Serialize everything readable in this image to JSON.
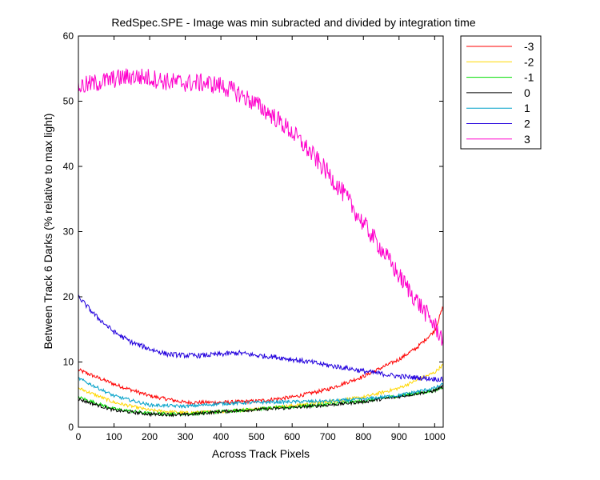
{
  "chart_data": {
    "type": "line",
    "title": "RedSpec.SPE - Image was min subracted and divided by integration time",
    "xlabel": "Across Track Pixels",
    "ylabel": "Between Track 6 Darks (% relative to max light)",
    "xlim": [
      0,
      1024
    ],
    "ylim": [
      0,
      60
    ],
    "xticks": [
      0,
      100,
      200,
      300,
      400,
      500,
      600,
      700,
      800,
      900,
      1000
    ],
    "yticks": [
      0,
      10,
      20,
      30,
      40,
      50,
      60
    ],
    "grid": false,
    "legend_position": "outside-top-right",
    "series": [
      {
        "name": "-3",
        "color": "#ff0000",
        "x": [
          0,
          100,
          200,
          300,
          400,
          500,
          600,
          700,
          800,
          900,
          950,
          1000,
          1024
        ],
        "y": [
          8.8,
          6.6,
          4.8,
          3.8,
          3.8,
          4.0,
          4.6,
          5.8,
          7.8,
          10.4,
          12.2,
          14.8,
          18.5
        ]
      },
      {
        "name": "-2",
        "color": "#ffd700",
        "x": [
          0,
          100,
          200,
          300,
          400,
          500,
          600,
          700,
          800,
          900,
          1000,
          1024
        ],
        "y": [
          6.0,
          3.8,
          2.6,
          2.2,
          2.4,
          2.8,
          3.3,
          3.9,
          4.6,
          6.0,
          8.4,
          9.6
        ]
      },
      {
        "name": "-1",
        "color": "#00dd00",
        "x": [
          0,
          100,
          200,
          300,
          400,
          500,
          600,
          700,
          800,
          900,
          1000,
          1024
        ],
        "y": [
          4.6,
          2.8,
          2.1,
          2.0,
          2.4,
          2.8,
          3.1,
          3.5,
          4.0,
          4.8,
          5.6,
          6.2
        ]
      },
      {
        "name": "0",
        "color": "#000000",
        "x": [
          0,
          100,
          200,
          300,
          400,
          500,
          600,
          700,
          800,
          900,
          1000,
          1024
        ],
        "y": [
          4.3,
          2.6,
          2.0,
          1.9,
          2.4,
          2.7,
          3.0,
          3.4,
          3.9,
          4.7,
          5.6,
          6.3
        ]
      },
      {
        "name": "1",
        "color": "#00a0c8",
        "x": [
          0,
          100,
          200,
          300,
          400,
          500,
          600,
          700,
          800,
          900,
          1000,
          1024
        ],
        "y": [
          7.5,
          4.8,
          3.4,
          3.2,
          3.6,
          3.8,
          3.9,
          4.0,
          4.3,
          4.9,
          6.0,
          6.6
        ]
      },
      {
        "name": "2",
        "color": "#2200dd",
        "x": [
          0,
          50,
          100,
          150,
          200,
          250,
          300,
          350,
          400,
          450,
          500,
          550,
          600,
          650,
          700,
          750,
          800,
          850,
          900,
          950,
          1000,
          1024
        ],
        "y": [
          20.0,
          17.0,
          14.6,
          13.0,
          12.0,
          11.2,
          11.0,
          11.0,
          11.2,
          11.4,
          11.0,
          10.8,
          10.4,
          10.0,
          9.5,
          9.1,
          8.6,
          8.2,
          7.8,
          7.6,
          7.4,
          7.3
        ]
      },
      {
        "name": "3",
        "color": "#ff00cc",
        "x": [
          0,
          50,
          100,
          150,
          200,
          250,
          300,
          350,
          400,
          450,
          500,
          550,
          600,
          650,
          700,
          750,
          800,
          850,
          900,
          950,
          1000,
          1024
        ],
        "y": [
          52.2,
          52.8,
          53.4,
          53.8,
          53.6,
          53.0,
          52.8,
          52.8,
          52.4,
          51.2,
          49.5,
          47.6,
          45.2,
          42.2,
          39.0,
          35.4,
          31.2,
          27.4,
          23.2,
          19.4,
          15.6,
          13.4
        ]
      }
    ]
  }
}
